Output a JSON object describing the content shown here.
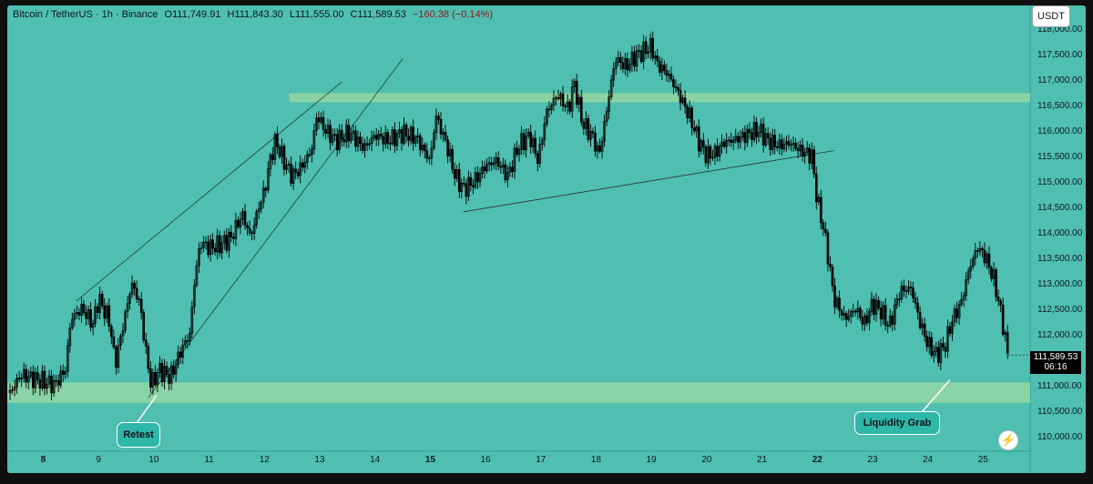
{
  "header": {
    "symbol": "Bitcoin / TetherUS · 1h · Binance",
    "open": "O111,749.91",
    "high": "H111,843.30",
    "low": "L111,555.00",
    "close": "C111,589.53",
    "change": "−160.38 (−0.14%)"
  },
  "currency_button": "USDT",
  "last_price": {
    "value": "111,589.53",
    "countdown": "06:16"
  },
  "colors": {
    "background": "#4ebfb1",
    "zone": "#9fd9a0",
    "candle": "#000000",
    "frame": "#0f0f0f"
  },
  "icons": {
    "flash": "flash-icon"
  },
  "chart_data": {
    "type": "candlestick",
    "x_tick_labels": [
      "8",
      "9",
      "10",
      "11",
      "12",
      "13",
      "14",
      "15",
      "16",
      "17",
      "18",
      "19",
      "20",
      "21",
      "22",
      "23",
      "24",
      "25"
    ],
    "x_bold_labels": [
      "8",
      "15",
      "22"
    ],
    "y_tick_labels": [
      "110,000.00",
      "110,500.00",
      "111,000.00",
      "111,500.00",
      "112,000.00",
      "112,500.00",
      "113,000.00",
      "113,500.00",
      "114,000.00",
      "114,500.00",
      "115,000.00",
      "115,500.00",
      "116,000.00",
      "116,500.00",
      "117,000.00",
      "117,500.00",
      "118,000.00"
    ],
    "ylim": [
      109700,
      118450
    ],
    "xlim": [
      7.35,
      25.85
    ],
    "price_path": [
      [
        7.4,
        110850
      ],
      [
        7.6,
        111200
      ],
      [
        7.9,
        111100
      ],
      [
        8.2,
        111000
      ],
      [
        8.4,
        111300
      ],
      [
        8.5,
        112300
      ],
      [
        8.7,
        112500
      ],
      [
        8.9,
        112200
      ],
      [
        9.0,
        112700
      ],
      [
        9.2,
        112250
      ],
      [
        9.3,
        111400
      ],
      [
        9.45,
        112200
      ],
      [
        9.6,
        113000
      ],
      [
        9.75,
        112600
      ],
      [
        9.85,
        111700
      ],
      [
        9.95,
        111000
      ],
      [
        10.1,
        111300
      ],
      [
        10.3,
        111150
      ],
      [
        10.5,
        111700
      ],
      [
        10.65,
        112000
      ],
      [
        10.75,
        113200
      ],
      [
        10.85,
        113800
      ],
      [
        11.0,
        113700
      ],
      [
        11.2,
        113750
      ],
      [
        11.4,
        113900
      ],
      [
        11.6,
        114350
      ],
      [
        11.75,
        113900
      ],
      [
        11.9,
        114500
      ],
      [
        12.0,
        114800
      ],
      [
        12.1,
        115400
      ],
      [
        12.2,
        115800
      ],
      [
        12.35,
        115400
      ],
      [
        12.5,
        115100
      ],
      [
        12.65,
        115250
      ],
      [
        12.85,
        115600
      ],
      [
        12.95,
        116300
      ],
      [
        13.1,
        116000
      ],
      [
        13.3,
        115800
      ],
      [
        13.55,
        115950
      ],
      [
        13.8,
        115650
      ],
      [
        14.0,
        115900
      ],
      [
        14.25,
        115800
      ],
      [
        14.5,
        115950
      ],
      [
        14.75,
        115850
      ],
      [
        15.0,
        115400
      ],
      [
        15.1,
        116300
      ],
      [
        15.3,
        115700
      ],
      [
        15.45,
        115100
      ],
      [
        15.6,
        114850
      ],
      [
        15.8,
        115000
      ],
      [
        16.0,
        115300
      ],
      [
        16.2,
        115400
      ],
      [
        16.4,
        115100
      ],
      [
        16.6,
        115700
      ],
      [
        16.8,
        115900
      ],
      [
        16.95,
        115400
      ],
      [
        17.1,
        116350
      ],
      [
        17.3,
        116700
      ],
      [
        17.5,
        116400
      ],
      [
        17.6,
        116950
      ],
      [
        17.75,
        116150
      ],
      [
        17.95,
        115850
      ],
      [
        18.05,
        115500
      ],
      [
        18.15,
        116100
      ],
      [
        18.25,
        116800
      ],
      [
        18.35,
        117400
      ],
      [
        18.55,
        117250
      ],
      [
        18.7,
        117450
      ],
      [
        18.85,
        117550
      ],
      [
        19.0,
        117650
      ],
      [
        19.1,
        117300
      ],
      [
        19.3,
        117100
      ],
      [
        19.5,
        116700
      ],
      [
        19.7,
        116250
      ],
      [
        19.85,
        115800
      ],
      [
        20.0,
        115500
      ],
      [
        20.15,
        115550
      ],
      [
        20.3,
        115750
      ],
      [
        20.45,
        115800
      ],
      [
        20.6,
        115850
      ],
      [
        20.8,
        115950
      ],
      [
        20.95,
        116000
      ],
      [
        21.1,
        115800
      ],
      [
        21.3,
        115700
      ],
      [
        21.5,
        115750
      ],
      [
        21.7,
        115600
      ],
      [
        21.9,
        115500
      ],
      [
        22.0,
        114600
      ],
      [
        22.1,
        114150
      ],
      [
        22.2,
        113500
      ],
      [
        22.3,
        112700
      ],
      [
        22.5,
        112300
      ],
      [
        22.7,
        112500
      ],
      [
        22.85,
        112200
      ],
      [
        23.0,
        112600
      ],
      [
        23.15,
        112450
      ],
      [
        23.3,
        112150
      ],
      [
        23.5,
        112850
      ],
      [
        23.7,
        112900
      ],
      [
        23.85,
        112250
      ],
      [
        24.0,
        111800
      ],
      [
        24.15,
        111600
      ],
      [
        24.3,
        111750
      ],
      [
        24.45,
        112300
      ],
      [
        24.6,
        112600
      ],
      [
        24.75,
        113300
      ],
      [
        24.9,
        113700
      ],
      [
        25.05,
        113500
      ],
      [
        25.2,
        113050
      ],
      [
        25.35,
        112250
      ],
      [
        25.45,
        111550
      ]
    ],
    "support_zone": [
      110650,
      111050
    ],
    "resistance_zone": [
      116550,
      116730
    ],
    "trendlines": [
      {
        "from": [
          8.6,
          112650
        ],
        "to": [
          13.4,
          116950
        ]
      },
      {
        "from": [
          9.9,
          110750
        ],
        "to": [
          14.5,
          117400
        ]
      },
      {
        "from": [
          15.6,
          114400
        ],
        "to": [
          22.3,
          115600
        ]
      }
    ],
    "annotations": [
      {
        "label": "Retest",
        "point": [
          10.05,
          110800
        ]
      },
      {
        "label": "Liquidity Grab",
        "point": [
          24.4,
          111100
        ]
      }
    ]
  }
}
